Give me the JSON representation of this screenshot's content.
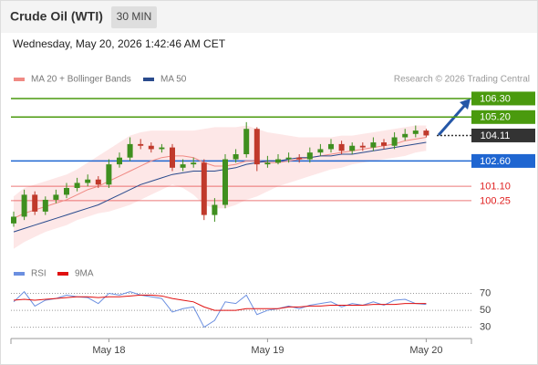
{
  "header": {
    "title": "Crude Oil (WTI)",
    "interval": "30 MIN",
    "datetime": "Wednesday, May 20, 2026 1:42:46 AM CET",
    "source": "Research © 2026 Trading Central"
  },
  "chart_data": [
    {
      "type": "candlestick",
      "categories": [
        null,
        null,
        null,
        null,
        null,
        null,
        null,
        null,
        null,
        "May 18",
        null,
        null,
        null,
        null,
        null,
        null,
        null,
        null,
        null,
        null,
        null,
        null,
        null,
        null,
        "May 19",
        null,
        null,
        null,
        null,
        null,
        null,
        null,
        null,
        null,
        null,
        null,
        null,
        null,
        null,
        "May 20"
      ],
      "open": [
        98.9,
        99.3,
        100.6,
        99.6,
        100.3,
        100.6,
        101.0,
        101.3,
        101.5,
        101.2,
        102.4,
        102.8,
        103.6,
        103.5,
        103.3,
        103.4,
        102.2,
        102.4,
        102.5,
        99.4,
        100.0,
        102.7,
        103.0,
        104.5,
        102.4,
        102.5,
        102.7,
        102.8,
        102.7,
        103.1,
        103.3,
        103.6,
        103.2,
        103.5,
        103.4,
        103.7,
        103.5,
        104.0,
        104.2,
        104.4
      ],
      "high": [
        99.6,
        100.9,
        100.8,
        100.5,
        100.9,
        101.3,
        101.6,
        101.8,
        101.7,
        102.7,
        103.1,
        104.0,
        103.9,
        103.7,
        103.6,
        103.6,
        102.7,
        102.8,
        102.7,
        100.4,
        103.0,
        103.3,
        104.9,
        104.6,
        102.9,
        103.0,
        103.1,
        103.0,
        103.4,
        103.6,
        103.9,
        103.8,
        103.7,
        103.7,
        104.0,
        103.9,
        104.3,
        104.5,
        104.7,
        104.5
      ],
      "low": [
        98.7,
        99.1,
        99.4,
        99.4,
        100.1,
        100.4,
        100.8,
        101.1,
        101.0,
        101.0,
        102.2,
        102.6,
        103.3,
        103.1,
        103.1,
        102.0,
        102.0,
        102.2,
        99.1,
        99.0,
        99.8,
        102.5,
        102.8,
        102.0,
        102.2,
        102.4,
        102.5,
        102.5,
        102.5,
        102.9,
        103.1,
        103.0,
        103.0,
        103.2,
        103.2,
        103.3,
        103.3,
        103.8,
        104.0,
        104.0
      ],
      "close": [
        99.3,
        100.6,
        99.6,
        100.3,
        100.6,
        101.0,
        101.3,
        101.5,
        101.2,
        102.4,
        102.8,
        103.6,
        103.5,
        103.3,
        103.4,
        102.2,
        102.4,
        102.5,
        99.4,
        100.0,
        102.7,
        103.0,
        104.5,
        102.4,
        102.5,
        102.7,
        102.8,
        102.7,
        103.1,
        103.3,
        103.6,
        103.2,
        103.5,
        103.4,
        103.7,
        103.5,
        104.0,
        104.2,
        104.4,
        104.11
      ],
      "up_color": "#3f8f1f",
      "down_color": "#c0392b",
      "series": [
        {
          "name": "MA 20 + Bollinger Bands",
          "color": "#f08a84",
          "values": [
            99.2,
            99.5,
            99.7,
            99.9,
            100.1,
            100.3,
            100.6,
            100.9,
            101.1,
            101.4,
            101.7,
            102.0,
            102.3,
            102.6,
            102.8,
            102.9,
            102.9,
            102.8,
            102.5,
            102.3,
            102.3,
            102.4,
            102.6,
            102.6,
            102.5,
            102.5,
            102.6,
            102.7,
            102.8,
            102.9,
            103.0,
            103.1,
            103.2,
            103.3,
            103.4,
            103.5,
            103.6,
            103.8,
            103.9,
            104.0
          ]
        },
        {
          "name": "MA 50",
          "color": "#2a4b8d",
          "values": [
            98.4,
            98.6,
            98.8,
            99.0,
            99.2,
            99.4,
            99.6,
            99.8,
            100.0,
            100.3,
            100.6,
            100.9,
            101.2,
            101.4,
            101.6,
            101.8,
            101.9,
            102.0,
            102.0,
            102.0,
            102.1,
            102.2,
            102.4,
            102.5,
            102.6,
            102.6,
            102.7,
            102.8,
            102.8,
            102.9,
            102.9,
            103.0,
            103.0,
            103.1,
            103.2,
            103.3,
            103.4,
            103.5,
            103.6,
            103.7
          ]
        }
      ],
      "bands": {
        "color": "#fde3e3",
        "upper": [
          100.5,
          101.0,
          101.2,
          101.4,
          101.6,
          101.8,
          102.1,
          102.5,
          102.9,
          103.3,
          103.7,
          104.1,
          104.3,
          104.4,
          104.4,
          104.4,
          104.4,
          104.4,
          104.5,
          104.6,
          104.6,
          104.6,
          104.7,
          104.5,
          104.3,
          104.2,
          104.1,
          104.0,
          104.0,
          104.0,
          104.0,
          104.1,
          104.1,
          104.2,
          104.3,
          104.4,
          104.5,
          104.6,
          104.7,
          104.7
        ],
        "lower": [
          97.4,
          97.8,
          98.1,
          98.4,
          98.6,
          98.8,
          99.1,
          99.3,
          99.5,
          99.6,
          99.8,
          100.0,
          100.3,
          100.6,
          100.9,
          101.2,
          101.0,
          100.6,
          100.0,
          99.8,
          99.8,
          100.0,
          100.3,
          100.5,
          100.8,
          101.1,
          101.3,
          101.5,
          101.7,
          101.9,
          102.1,
          102.2,
          102.4,
          102.5,
          102.6,
          102.7,
          102.8,
          102.9,
          103.1,
          103.2
        ]
      },
      "levels": [
        {
          "value": 106.3,
          "label": "106.30",
          "color": "#4a9a0e",
          "style": "box",
          "line": "solid"
        },
        {
          "value": 105.2,
          "label": "105.20",
          "color": "#4a9a0e",
          "style": "box",
          "line": "solid"
        },
        {
          "value": 104.11,
          "color": "#333333",
          "style": "box",
          "line": "dotted"
        },
        {
          "value": 102.6,
          "label": "102.60",
          "color": "#1f66d1",
          "style": "box",
          "line": "solid"
        },
        {
          "value": 101.1,
          "label": "101.10",
          "color": "#e02020",
          "style": "text",
          "line": "solid"
        },
        {
          "value": 100.25,
          "label": "100.25",
          "color": "#e02020",
          "style": "text",
          "line": "solid"
        }
      ],
      "ylim": [
        97,
        107
      ]
    },
    {
      "type": "line",
      "series": [
        {
          "name": "RSI",
          "color": "#6b8fe0",
          "values": [
            60,
            72,
            55,
            62,
            64,
            68,
            66,
            65,
            58,
            70,
            68,
            72,
            68,
            66,
            64,
            48,
            52,
            54,
            30,
            38,
            60,
            58,
            68,
            45,
            50,
            52,
            55,
            52,
            56,
            58,
            60,
            54,
            58,
            56,
            60,
            56,
            62,
            63,
            58,
            57
          ]
        },
        {
          "name": "9MA",
          "color": "#e01010",
          "values": [
            62,
            63,
            62,
            63,
            64,
            65,
            66,
            66,
            65,
            66,
            66,
            67,
            68,
            68,
            67,
            64,
            62,
            60,
            54,
            50,
            50,
            50,
            52,
            52,
            52,
            52,
            54,
            54,
            55,
            55,
            56,
            56,
            56,
            56,
            57,
            57,
            57,
            58,
            58,
            58
          ]
        }
      ],
      "ylim": [
        22,
        83
      ],
      "yticks": [
        70,
        50,
        30
      ]
    }
  ]
}
